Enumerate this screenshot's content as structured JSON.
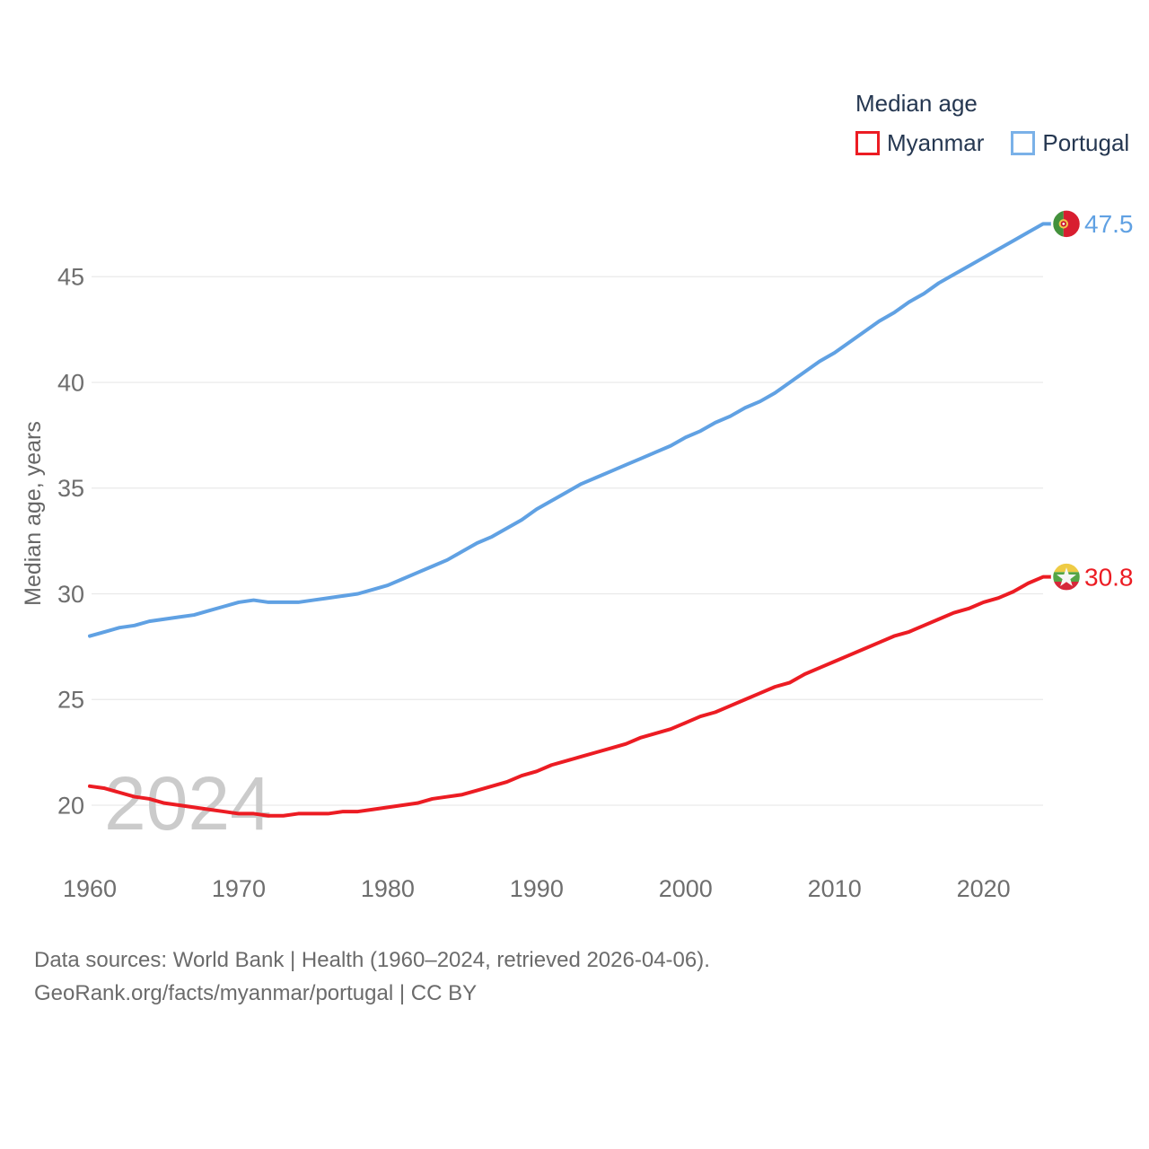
{
  "legend": {
    "title": "Median age",
    "items": [
      {
        "label": "Myanmar",
        "color": "#ec1c23"
      },
      {
        "label": "Portugal",
        "color": "#7ab1e8"
      }
    ]
  },
  "chart_data": {
    "type": "line",
    "title": "Median age",
    "ylabel": "Median age, years",
    "xlabel": "",
    "grid": "horizontal",
    "legend_position": "top-right",
    "watermark": "2024",
    "xlim": [
      1960,
      2024
    ],
    "ylim": [
      18.5,
      48.5
    ],
    "xticks": [
      1960,
      1970,
      1980,
      1990,
      2000,
      2010,
      2020
    ],
    "yticks": [
      20,
      25,
      30,
      35,
      40,
      45
    ],
    "x": [
      1960,
      1961,
      1962,
      1963,
      1964,
      1965,
      1966,
      1967,
      1968,
      1969,
      1970,
      1971,
      1972,
      1973,
      1974,
      1975,
      1976,
      1977,
      1978,
      1979,
      1980,
      1981,
      1982,
      1983,
      1984,
      1985,
      1986,
      1987,
      1988,
      1989,
      1990,
      1991,
      1992,
      1993,
      1994,
      1995,
      1996,
      1997,
      1998,
      1999,
      2000,
      2001,
      2002,
      2003,
      2004,
      2005,
      2006,
      2007,
      2008,
      2009,
      2010,
      2011,
      2012,
      2013,
      2014,
      2015,
      2016,
      2017,
      2018,
      2019,
      2020,
      2021,
      2022,
      2023,
      2024
    ],
    "series": [
      {
        "name": "Myanmar",
        "color": "#ec1c23",
        "end_label": "30.8",
        "end_value": 30.8,
        "flag": "myanmar",
        "values": [
          20.9,
          20.8,
          20.6,
          20.4,
          20.3,
          20.1,
          20.0,
          19.9,
          19.8,
          19.7,
          19.6,
          19.6,
          19.5,
          19.5,
          19.6,
          19.6,
          19.6,
          19.7,
          19.7,
          19.8,
          19.9,
          20.0,
          20.1,
          20.3,
          20.4,
          20.5,
          20.7,
          20.9,
          21.1,
          21.4,
          21.6,
          21.9,
          22.1,
          22.3,
          22.5,
          22.7,
          22.9,
          23.2,
          23.4,
          23.6,
          23.9,
          24.2,
          24.4,
          24.7,
          25.0,
          25.3,
          25.6,
          25.8,
          26.2,
          26.5,
          26.8,
          27.1,
          27.4,
          27.7,
          28.0,
          28.2,
          28.5,
          28.8,
          29.1,
          29.3,
          29.6,
          29.8,
          30.1,
          30.5,
          30.8
        ]
      },
      {
        "name": "Portugal",
        "color": "#60a1e3",
        "end_label": "47.5",
        "end_value": 47.5,
        "flag": "portugal",
        "values": [
          28.0,
          28.2,
          28.4,
          28.5,
          28.7,
          28.8,
          28.9,
          29.0,
          29.2,
          29.4,
          29.6,
          29.7,
          29.6,
          29.6,
          29.6,
          29.7,
          29.8,
          29.9,
          30.0,
          30.2,
          30.4,
          30.7,
          31.0,
          31.3,
          31.6,
          32.0,
          32.4,
          32.7,
          33.1,
          33.5,
          34.0,
          34.4,
          34.8,
          35.2,
          35.5,
          35.8,
          36.1,
          36.4,
          36.7,
          37.0,
          37.4,
          37.7,
          38.1,
          38.4,
          38.8,
          39.1,
          39.5,
          40.0,
          40.5,
          41.0,
          41.4,
          41.9,
          42.4,
          42.9,
          43.3,
          43.8,
          44.2,
          44.7,
          45.1,
          45.5,
          45.9,
          46.3,
          46.7,
          47.1,
          47.5
        ]
      }
    ]
  },
  "footer": {
    "line1": "Data sources: World Bank | Health (1960–2024, retrieved 2026-04-06).",
    "line2": "GeoRank.org/facts/myanmar/portugal | CC BY"
  },
  "colors": {
    "axis_text": "#6e6e6e",
    "axis_title": "#666666",
    "gridline": "#e9e9e9",
    "watermark": "#cbcbcb",
    "legend_text": "#253751"
  }
}
